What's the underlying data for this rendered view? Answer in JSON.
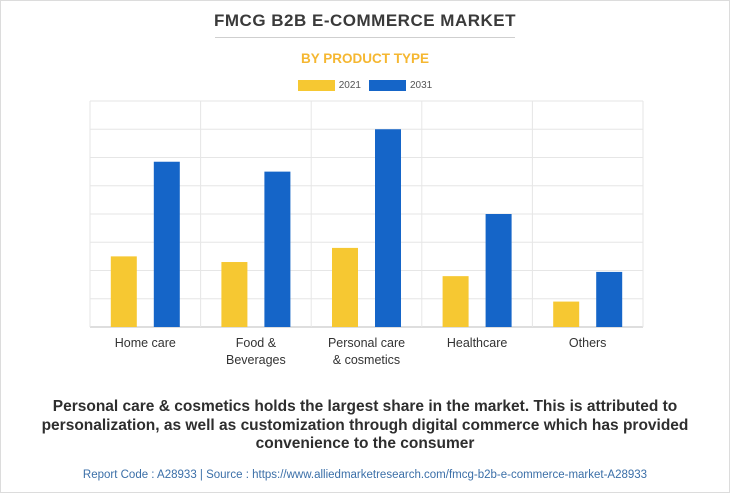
{
  "header": {
    "title": "FMCG B2B E-COMMERCE MARKET",
    "subtitle": "BY PRODUCT TYPE"
  },
  "colors": {
    "series_2021": "#f6c832",
    "series_2031": "#1565c8",
    "subtitle": "#f5b731",
    "footer": "#3b6fa8"
  },
  "chart_data": {
    "type": "bar",
    "categories": [
      "Home care",
      "Food & Beverages",
      "Personal care & cosmetics",
      "Healthcare",
      "Others"
    ],
    "category_lines": [
      [
        "Home care"
      ],
      [
        "Food &",
        "Beverages"
      ],
      [
        "Personal care",
        "& cosmetics"
      ],
      [
        "Healthcare"
      ],
      [
        "Others"
      ]
    ],
    "series": [
      {
        "name": "2021",
        "values": [
          2.5,
          2.3,
          2.8,
          1.8,
          0.9
        ]
      },
      {
        "name": "2031",
        "values": [
          5.85,
          5.5,
          7.0,
          4.0,
          1.95
        ]
      }
    ],
    "ylim": [
      0,
      8
    ],
    "y_gridlines": 8,
    "grid": true,
    "legend": "top-center",
    "title": "FMCG B2B E-COMMERCE MARKET",
    "xlabel": "",
    "ylabel": ""
  },
  "caption": "Personal care & cosmetics holds the largest share in the market. This is attributed to personalization, as well as customization through digital commerce which has provided convenience to the consumer",
  "footer": {
    "text": "Report Code : A28933  |  Source : https://www.alliedmarketresearch.com/fmcg-b2b-e-commerce-market-A28933"
  }
}
